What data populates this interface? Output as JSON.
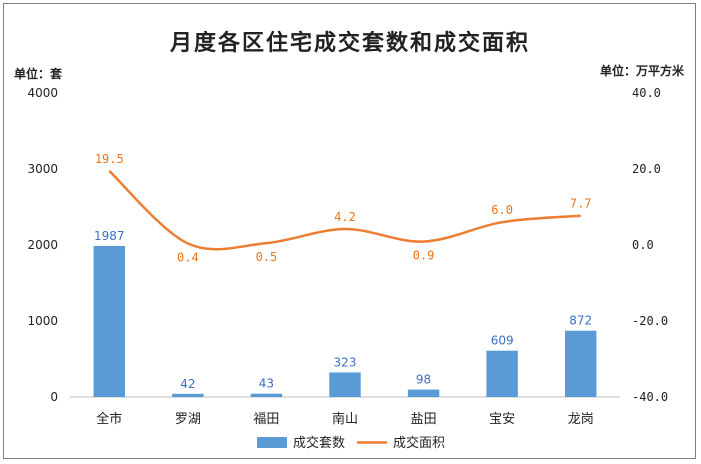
{
  "chart_data": {
    "type": "bar",
    "title": "月度各区住宅成交套数和成交面积",
    "left_unit": "单位：套",
    "right_unit": "单位：万平方米",
    "categories": [
      "全市",
      "罗湖",
      "福田",
      "南山",
      "盐田",
      "宝安",
      "龙岗"
    ],
    "series": [
      {
        "name": "成交套数",
        "type": "bar",
        "axis": "left",
        "color": "#5b9bd5",
        "values": [
          1987,
          42,
          43,
          323,
          98,
          609,
          872
        ],
        "labels": [
          "1987",
          "42",
          "43",
          "323",
          "98",
          "609",
          "872"
        ]
      },
      {
        "name": "成交面积",
        "type": "line",
        "axis": "right",
        "color": "#ed7d31",
        "values": [
          19.5,
          0.4,
          0.5,
          4.2,
          0.9,
          6.0,
          7.7
        ],
        "labels": [
          "19.5",
          "0.4",
          "0.5",
          "4.2",
          "0.9",
          "6.0",
          "7.7"
        ]
      }
    ],
    "left_axis": {
      "ylim": [
        0,
        4000
      ],
      "ticks": [
        "0",
        "1000",
        "2000",
        "3000",
        "4000"
      ],
      "tick_values": [
        0,
        1000,
        2000,
        3000,
        4000
      ]
    },
    "right_axis": {
      "ylim": [
        -40,
        40
      ],
      "ticks": [
        "-40.0",
        "-20.0",
        "0.0",
        "20.0",
        "40.0"
      ],
      "tick_values": [
        -40,
        -20,
        0,
        20,
        40
      ]
    },
    "grid": false,
    "legend": "bottom"
  }
}
